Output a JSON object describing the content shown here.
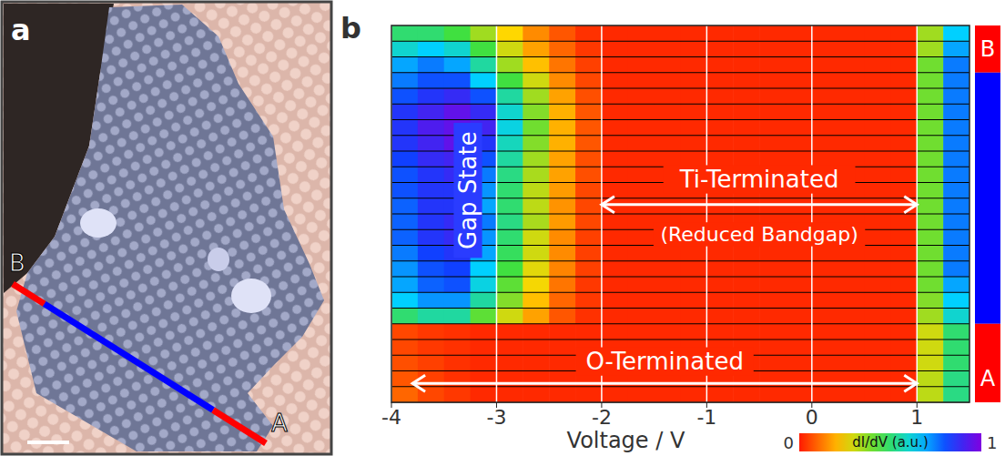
{
  "image": {
    "panel": "a",
    "line_labels": [
      "B",
      "A"
    ]
  },
  "chart_data": {
    "type": "heatmap",
    "panel": "b",
    "x_label": "Voltage / V",
    "xlim": [
      -4,
      1.5
    ],
    "xticks": [
      -4,
      -3,
      -2,
      -1,
      0,
      1
    ],
    "ylim": [
      0,
      24
    ],
    "tick_labels": "x",
    "grid": true,
    "x": [
      -3.875,
      -3.625,
      -3.375,
      -3.125,
      -2.875,
      -2.625,
      -2.375,
      -2.125,
      -1.875,
      -1.625,
      -1.375,
      -1.125,
      -0.875,
      -0.625,
      -0.375,
      -0.125,
      0.125,
      0.375,
      0.625,
      0.875,
      1.125,
      1.375
    ],
    "cells": [
      [
        0.5,
        0.5,
        0.45,
        0.35,
        0.25,
        0.15,
        0.08,
        0.03,
        0.02,
        0.02,
        0.02,
        0.02,
        0.02,
        0.02,
        0.02,
        0.02,
        0.02,
        0.02,
        0.02,
        0.02,
        0.35,
        0.65
      ],
      [
        0.6,
        0.65,
        0.6,
        0.45,
        0.3,
        0.18,
        0.1,
        0.04,
        0.02,
        0.02,
        0.02,
        0.02,
        0.02,
        0.02,
        0.02,
        0.02,
        0.02,
        0.02,
        0.02,
        0.02,
        0.35,
        0.7
      ],
      [
        0.7,
        0.75,
        0.7,
        0.55,
        0.35,
        0.22,
        0.12,
        0.05,
        0.02,
        0.02,
        0.02,
        0.02,
        0.02,
        0.02,
        0.02,
        0.02,
        0.02,
        0.02,
        0.02,
        0.02,
        0.4,
        0.75
      ],
      [
        0.75,
        0.8,
        0.8,
        0.65,
        0.45,
        0.3,
        0.15,
        0.06,
        0.02,
        0.02,
        0.02,
        0.02,
        0.02,
        0.02,
        0.02,
        0.02,
        0.02,
        0.02,
        0.02,
        0.02,
        0.4,
        0.75
      ],
      [
        0.8,
        0.85,
        0.88,
        0.8,
        0.55,
        0.35,
        0.18,
        0.07,
        0.02,
        0.02,
        0.02,
        0.02,
        0.02,
        0.02,
        0.02,
        0.02,
        0.02,
        0.02,
        0.02,
        0.02,
        0.4,
        0.75
      ],
      [
        0.85,
        0.9,
        0.95,
        0.88,
        0.6,
        0.38,
        0.2,
        0.08,
        0.02,
        0.02,
        0.02,
        0.02,
        0.02,
        0.02,
        0.02,
        0.02,
        0.02,
        0.02,
        0.02,
        0.02,
        0.4,
        0.75
      ],
      [
        0.85,
        0.92,
        0.95,
        0.9,
        0.62,
        0.4,
        0.2,
        0.08,
        0.02,
        0.02,
        0.02,
        0.02,
        0.02,
        0.02,
        0.02,
        0.02,
        0.02,
        0.02,
        0.02,
        0.02,
        0.4,
        0.75
      ],
      [
        0.85,
        0.9,
        0.95,
        0.85,
        0.58,
        0.38,
        0.2,
        0.08,
        0.02,
        0.02,
        0.02,
        0.02,
        0.02,
        0.02,
        0.02,
        0.02,
        0.02,
        0.02,
        0.02,
        0.02,
        0.4,
        0.75
      ],
      [
        0.82,
        0.88,
        0.9,
        0.8,
        0.55,
        0.35,
        0.18,
        0.07,
        0.02,
        0.02,
        0.02,
        0.02,
        0.02,
        0.02,
        0.02,
        0.02,
        0.02,
        0.02,
        0.02,
        0.02,
        0.4,
        0.75
      ],
      [
        0.8,
        0.85,
        0.88,
        0.75,
        0.52,
        0.34,
        0.18,
        0.07,
        0.02,
        0.02,
        0.02,
        0.02,
        0.02,
        0.02,
        0.02,
        0.02,
        0.02,
        0.02,
        0.02,
        0.02,
        0.4,
        0.75
      ],
      [
        0.8,
        0.85,
        0.85,
        0.72,
        0.5,
        0.32,
        0.17,
        0.06,
        0.02,
        0.02,
        0.02,
        0.02,
        0.02,
        0.02,
        0.02,
        0.02,
        0.02,
        0.02,
        0.02,
        0.02,
        0.4,
        0.75
      ],
      [
        0.78,
        0.85,
        0.85,
        0.7,
        0.5,
        0.32,
        0.16,
        0.06,
        0.02,
        0.02,
        0.02,
        0.02,
        0.02,
        0.02,
        0.02,
        0.02,
        0.02,
        0.02,
        0.02,
        0.02,
        0.4,
        0.75
      ],
      [
        0.78,
        0.85,
        0.88,
        0.75,
        0.52,
        0.34,
        0.17,
        0.06,
        0.02,
        0.02,
        0.02,
        0.02,
        0.02,
        0.02,
        0.02,
        0.02,
        0.02,
        0.02,
        0.02,
        0.02,
        0.4,
        0.75
      ],
      [
        0.78,
        0.85,
        0.88,
        0.72,
        0.5,
        0.3,
        0.15,
        0.05,
        0.02,
        0.02,
        0.02,
        0.02,
        0.02,
        0.02,
        0.02,
        0.02,
        0.02,
        0.02,
        0.02,
        0.02,
        0.4,
        0.75
      ],
      [
        0.75,
        0.82,
        0.85,
        0.7,
        0.48,
        0.3,
        0.15,
        0.05,
        0.02,
        0.02,
        0.02,
        0.02,
        0.02,
        0.02,
        0.02,
        0.02,
        0.02,
        0.02,
        0.02,
        0.02,
        0.4,
        0.75
      ],
      [
        0.72,
        0.8,
        0.82,
        0.65,
        0.45,
        0.28,
        0.14,
        0.05,
        0.02,
        0.02,
        0.02,
        0.02,
        0.02,
        0.02,
        0.02,
        0.02,
        0.02,
        0.02,
        0.02,
        0.02,
        0.4,
        0.75
      ],
      [
        0.7,
        0.78,
        0.8,
        0.62,
        0.42,
        0.26,
        0.12,
        0.04,
        0.02,
        0.02,
        0.02,
        0.02,
        0.02,
        0.02,
        0.02,
        0.02,
        0.02,
        0.02,
        0.02,
        0.02,
        0.4,
        0.7
      ],
      [
        0.65,
        0.72,
        0.72,
        0.55,
        0.38,
        0.22,
        0.1,
        0.04,
        0.02,
        0.02,
        0.02,
        0.02,
        0.02,
        0.02,
        0.02,
        0.02,
        0.02,
        0.02,
        0.02,
        0.02,
        0.38,
        0.65
      ],
      [
        0.5,
        0.55,
        0.55,
        0.42,
        0.3,
        0.18,
        0.08,
        0.03,
        0.02,
        0.02,
        0.02,
        0.02,
        0.02,
        0.02,
        0.02,
        0.02,
        0.02,
        0.02,
        0.02,
        0.02,
        0.35,
        0.6
      ],
      [
        0.06,
        0.04,
        0.03,
        0.02,
        0.02,
        0.02,
        0.02,
        0.02,
        0.02,
        0.02,
        0.02,
        0.02,
        0.02,
        0.02,
        0.02,
        0.02,
        0.02,
        0.02,
        0.02,
        0.02,
        0.3,
        0.5
      ],
      [
        0.06,
        0.04,
        0.03,
        0.02,
        0.02,
        0.02,
        0.02,
        0.02,
        0.02,
        0.02,
        0.02,
        0.02,
        0.02,
        0.02,
        0.02,
        0.02,
        0.02,
        0.02,
        0.02,
        0.02,
        0.3,
        0.5
      ],
      [
        0.07,
        0.05,
        0.03,
        0.02,
        0.02,
        0.02,
        0.02,
        0.02,
        0.02,
        0.02,
        0.02,
        0.02,
        0.02,
        0.02,
        0.02,
        0.02,
        0.02,
        0.02,
        0.02,
        0.02,
        0.3,
        0.5
      ],
      [
        0.08,
        0.05,
        0.03,
        0.02,
        0.02,
        0.02,
        0.02,
        0.02,
        0.02,
        0.02,
        0.02,
        0.02,
        0.02,
        0.02,
        0.02,
        0.02,
        0.02,
        0.02,
        0.02,
        0.02,
        0.32,
        0.52
      ],
      [
        0.1,
        0.06,
        0.04,
        0.02,
        0.02,
        0.02,
        0.02,
        0.02,
        0.02,
        0.02,
        0.02,
        0.02,
        0.02,
        0.02,
        0.02,
        0.02,
        0.02,
        0.02,
        0.02,
        0.02,
        0.32,
        0.52
      ]
    ],
    "colorbar": {
      "label": "dI/dV (a.u.)",
      "range": [
        0,
        1
      ],
      "ticks": [
        0,
        1
      ]
    },
    "annotations": [
      {
        "text": "Gap State"
      },
      {
        "text": "Ti-Terminated",
        "arrow": [
          -2,
          1
        ]
      },
      {
        "text": "(Reduced Bandgap)"
      },
      {
        "text": "O-Terminated",
        "arrow": [
          -3.8,
          1
        ]
      }
    ],
    "position_bar": {
      "labels": [
        "B",
        "A"
      ],
      "colors": [
        "#ff0000",
        "#0000ff",
        "#ff0000"
      ],
      "rows": [
        3,
        16,
        5
      ]
    }
  }
}
